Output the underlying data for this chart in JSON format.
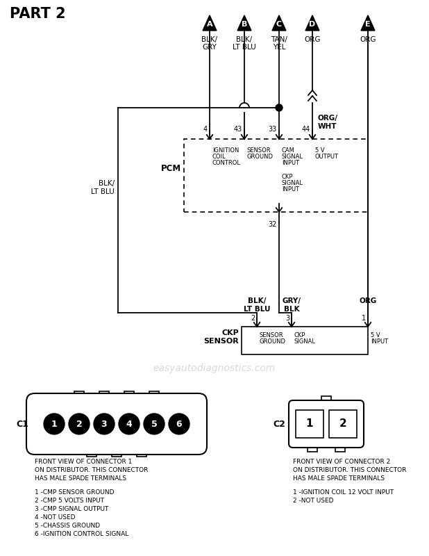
{
  "title": "PART 2",
  "bg_color": "#ffffff",
  "tri_labels": [
    "A",
    "B",
    "C",
    "D",
    "E"
  ],
  "wire_colors_top": [
    [
      "BLK/",
      "GRY"
    ],
    [
      "BLK/",
      "LT BLU"
    ],
    [
      "TAN/",
      "YEL"
    ],
    [
      "ORG"
    ],
    [
      "ORG"
    ]
  ],
  "pcm_pins": [
    "4",
    "43",
    "33",
    "44"
  ],
  "pcm_labels": [
    [
      "IGNITION",
      "COIL",
      "CONTROL"
    ],
    [
      "SENSOR",
      "GROUND"
    ],
    [
      "CAM",
      "SIGNAL",
      "INPUT"
    ],
    [
      "5 V",
      "OUTPUT"
    ]
  ],
  "pcm_label2": [
    "CKP",
    "SIGNAL",
    "INPUT"
  ],
  "pcm_label_name": "PCM",
  "left_wire_label": [
    "BLK/",
    "LT BLU"
  ],
  "org_wht_label": [
    "ORG/",
    "WHT"
  ],
  "pin32": "32",
  "ckp_wire_labels": [
    [
      "BLK/",
      "LT BLU"
    ],
    [
      "GRY/",
      "BLK"
    ],
    [
      "ORG"
    ]
  ],
  "ckp_pins": [
    "2",
    "3",
    "1"
  ],
  "ckp_labels": [
    [
      "SENSOR",
      "GROUND"
    ],
    [
      "CKP",
      "SIGNAL"
    ],
    [
      "5 V",
      "INPUT"
    ]
  ],
  "ckp_sensor_name": [
    "CKP",
    "SENSOR"
  ],
  "watermark": "easyautodiagnostics.com",
  "c1_label": "C1",
  "c1_pins": [
    "1",
    "2",
    "3",
    "4",
    "5",
    "6"
  ],
  "c1_desc": [
    "FRONT VIEW OF CONNECTOR 1",
    "ON DISTRIBUTOR. THIS CONNECTOR",
    "HAS MALE SPADE TERMINALS"
  ],
  "c1_pin_desc": [
    "1 -CMP SENSOR GROUND",
    "2 -CMP 5 VOLTS INPUT",
    "3 -CMP SIGNAL OUTPUT",
    "4 -NOT USED",
    "5 -CHASSIS GROUND",
    "6 -IGNITION CONTROL SIGNAL"
  ],
  "c2_label": "C2",
  "c2_pins": [
    "1",
    "2"
  ],
  "c2_desc": [
    "FRONT VIEW OF CONNECTOR 2",
    "ON DISTRIBUTOR. THIS CONNECTOR",
    "HAS MALE SPADE TERMINALS"
  ],
  "c2_pin_desc": [
    "1 -IGNITION COIL 12 VOLT INPUT",
    "2 -NOT USED"
  ]
}
